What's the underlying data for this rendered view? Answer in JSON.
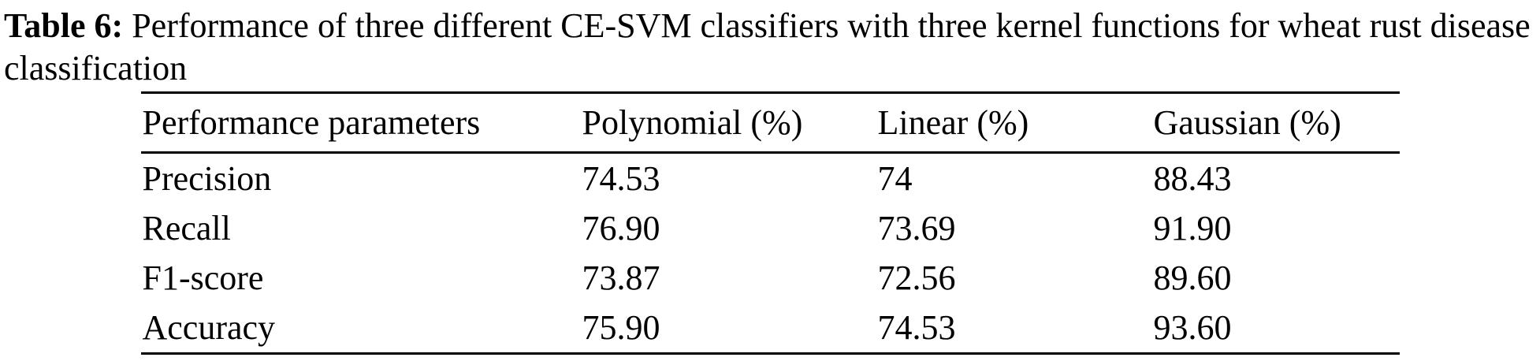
{
  "caption": {
    "label": "Table 6:",
    "text": "Performance of three different CE-SVM classifiers with three kernel functions for wheat rust disease classification"
  },
  "table": {
    "headers": [
      "Performance parameters",
      "Polynomial (%)",
      "Linear (%)",
      "Gaussian (%)"
    ],
    "rows": [
      {
        "parameter": "Precision",
        "polynomial": "74.53",
        "linear": "74",
        "gaussian": "88.43"
      },
      {
        "parameter": "Recall",
        "polynomial": "76.90",
        "linear": "73.69",
        "gaussian": "91.90"
      },
      {
        "parameter": "F1-score",
        "polynomial": "73.87",
        "linear": "72.56",
        "gaussian": "89.60"
      },
      {
        "parameter": "Accuracy",
        "polynomial": "75.90",
        "linear": "74.53",
        "gaussian": "93.60"
      }
    ]
  },
  "colors": {
    "text": "#000000",
    "background": "#ffffff",
    "rule": "#000000"
  }
}
